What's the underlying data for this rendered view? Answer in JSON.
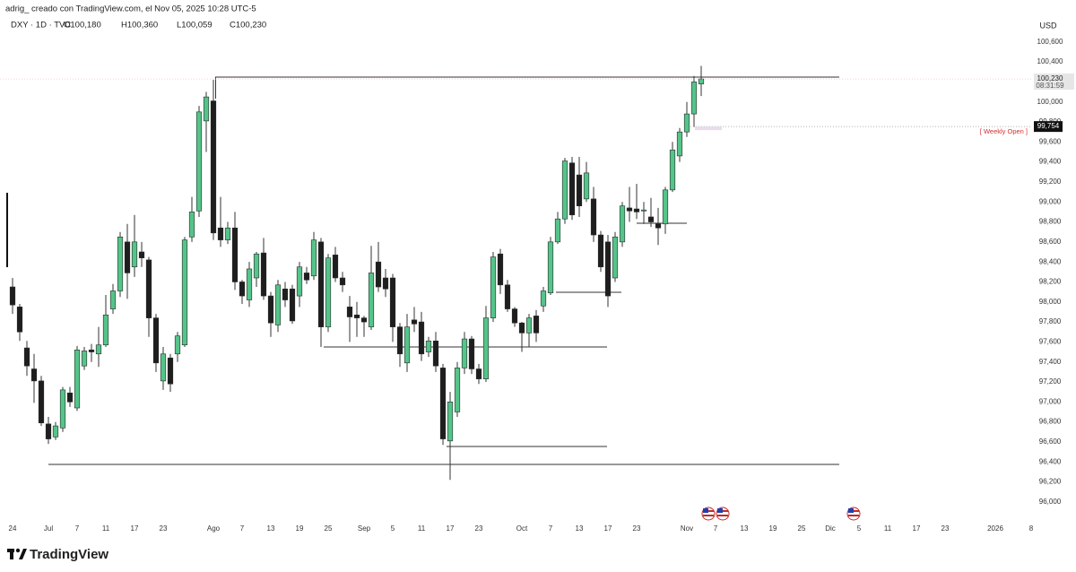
{
  "header": {
    "author_line": "adrig_ creado con TradingView.com, el Nov 05, 2025 10:28 UTC-5",
    "symbol": "DXY · 1D · TVC",
    "ohlc": [
      "O100,180",
      "H100,360",
      "L100,059",
      "C100,230"
    ]
  },
  "footer": {
    "brand": "TradingView"
  },
  "chart_data": {
    "type": "candlestick",
    "y_unit": "USD",
    "up_color": "#55c48a",
    "down_color": "#1e1e1e",
    "grid": false,
    "categories": [
      "24",
      null,
      null,
      null,
      null,
      "Jul",
      null,
      null,
      null,
      "7",
      null,
      null,
      null,
      "11",
      null,
      null,
      null,
      "17",
      null,
      null,
      null,
      "23",
      null,
      null,
      null,
      null,
      null,
      null,
      "Ago",
      null,
      null,
      null,
      "7",
      null,
      null,
      null,
      "13",
      null,
      null,
      null,
      "19",
      null,
      null,
      null,
      "25",
      null,
      null,
      null,
      null,
      "Sep",
      null,
      null,
      null,
      "5",
      null,
      null,
      null,
      "11",
      null,
      null,
      null,
      "17",
      null,
      null,
      null,
      "23",
      null,
      null,
      null,
      null,
      null,
      "Oct",
      null,
      null,
      null,
      "7",
      null,
      null,
      null,
      "13",
      null,
      null,
      null,
      "17",
      null,
      null,
      null,
      "23",
      null,
      null,
      null,
      null,
      null,
      null,
      "Nov",
      null,
      null,
      null,
      "7",
      null,
      null,
      null,
      "13",
      null,
      null,
      null,
      "19",
      null,
      null,
      null,
      "25",
      null,
      null,
      null,
      "Dic",
      null,
      null,
      null,
      "5",
      null,
      null,
      null,
      "11",
      null,
      null,
      null,
      "17",
      null,
      null,
      null,
      "23",
      null,
      null,
      null,
      null,
      null,
      null,
      "2026",
      null,
      null,
      null,
      null,
      "8"
    ],
    "open": [
      98.15,
      97.95,
      97.54,
      97.33,
      97.21,
      96.78,
      96.65,
      96.74,
      97.09,
      96.94,
      97.36,
      97.52,
      97.48,
      97.57,
      97.93,
      98.11,
      98.6,
      98.35,
      98.5,
      98.42,
      97.84,
      97.21,
      97.44,
      97.48,
      97.57,
      98.65,
      98.91,
      99.81,
      100.01,
      98.74,
      98.62,
      98.74,
      98.2,
      98.02,
      98.24,
      98.49,
      98.06,
      97.77,
      98.13,
      98.13,
      98.06,
      98.29,
      98.26,
      98.6,
      97.75,
      98.47,
      98.24,
      97.95,
      97.87,
      97.84,
      97.75,
      98.4,
      98.24,
      98.24,
      97.75,
      97.39,
      97.82,
      97.8,
      97.5,
      97.61,
      97.34,
      96.61,
      96.9,
      97.34,
      97.63,
      97.33,
      97.23,
      97.84,
      98.48,
      98.17,
      97.93,
      97.79,
      97.69,
      97.86,
      97.96,
      98.09,
      98.6,
      98.83,
      99.39,
      99.27,
      99.03,
      99.03,
      98.67,
      98.6,
      98.24,
      98.6,
      98.94,
      98.93,
      98.91,
      98.85,
      98.78,
      98.78,
      99.12,
      99.46,
      99.7,
      99.88,
      100.18,
      null,
      null,
      null,
      null,
      null,
      null,
      null,
      null,
      null,
      null,
      null,
      null,
      null,
      null,
      null,
      null,
      null,
      null,
      null,
      null,
      null,
      null,
      null,
      null,
      null,
      null,
      null,
      null,
      null,
      null,
      null,
      null,
      null,
      null,
      null,
      null,
      null,
      null,
      null,
      null,
      null,
      null,
      null,
      null,
      null,
      null
    ],
    "high": [
      98.24,
      97.98,
      97.61,
      97.48,
      97.26,
      96.85,
      96.8,
      97.15,
      97.15,
      97.56,
      97.55,
      97.58,
      97.75,
      98.07,
      98.18,
      98.7,
      98.78,
      98.87,
      98.6,
      98.45,
      97.88,
      97.55,
      97.48,
      97.7,
      98.65,
      99.05,
      99.96,
      100.1,
      100.22,
      99.05,
      98.8,
      98.9,
      98.22,
      98.4,
      98.5,
      98.64,
      98.1,
      98.22,
      98.2,
      98.17,
      98.4,
      98.35,
      98.7,
      98.64,
      98.48,
      98.55,
      98.3,
      98.06,
      98.0,
      97.86,
      98.56,
      98.6,
      98.33,
      98.28,
      97.79,
      97.88,
      97.95,
      97.9,
      97.65,
      97.7,
      97.38,
      97.1,
      97.4,
      97.7,
      97.66,
      97.38,
      97.96,
      98.5,
      98.53,
      98.22,
      97.95,
      97.8,
      97.88,
      97.92,
      98.15,
      98.65,
      98.9,
      99.44,
      99.45,
      99.45,
      99.4,
      99.15,
      98.71,
      98.67,
      98.7,
      99.0,
      99.15,
      99.18,
      99.0,
      99.04,
      98.94,
      99.15,
      99.6,
      99.74,
      100.0,
      100.26,
      100.36,
      null,
      null,
      null,
      null,
      null,
      null,
      null,
      null,
      null,
      null,
      null,
      null,
      null,
      null,
      null,
      null,
      null,
      null,
      null,
      null,
      null,
      null,
      null,
      null,
      null,
      null,
      null,
      null,
      null,
      null,
      null,
      null,
      null,
      null,
      null,
      null,
      null,
      null,
      null,
      null,
      null,
      null,
      null,
      null,
      null,
      null
    ],
    "low": [
      97.88,
      97.61,
      97.26,
      96.99,
      96.76,
      96.58,
      96.62,
      96.7,
      96.95,
      96.91,
      97.32,
      97.4,
      97.35,
      97.55,
      97.88,
      98.05,
      98.03,
      98.25,
      98.35,
      97.65,
      97.3,
      97.12,
      97.1,
      97.4,
      97.55,
      98.6,
      98.85,
      99.5,
      98.62,
      98.55,
      98.58,
      98.12,
      97.98,
      97.95,
      98.15,
      98.02,
      97.65,
      97.7,
      97.95,
      97.78,
      97.95,
      98.18,
      98.22,
      97.55,
      97.7,
      98.2,
      98.1,
      97.6,
      97.65,
      97.65,
      97.72,
      98.1,
      98.05,
      97.6,
      97.35,
      97.3,
      97.7,
      97.41,
      97.45,
      97.3,
      96.57,
      96.22,
      96.85,
      97.28,
      97.28,
      97.18,
      97.2,
      97.8,
      98.08,
      97.9,
      97.75,
      97.5,
      97.55,
      97.6,
      97.9,
      98.07,
      98.58,
      98.78,
      98.82,
      98.85,
      99.0,
      98.6,
      98.3,
      97.95,
      98.2,
      98.55,
      98.8,
      98.83,
      98.78,
      98.75,
      98.57,
      98.68,
      99.1,
      99.4,
      99.65,
      99.75,
      100.059,
      null,
      null,
      null,
      null,
      null,
      null,
      null,
      null,
      null,
      null,
      null,
      null,
      null,
      null,
      null,
      null,
      null,
      null,
      null,
      null,
      null,
      null,
      null,
      null,
      null,
      null,
      null,
      null,
      null,
      null,
      null,
      null,
      null,
      null,
      null,
      null,
      null,
      null,
      null,
      null,
      null,
      null,
      null,
      null,
      null,
      null
    ],
    "close": [
      97.97,
      97.7,
      97.36,
      97.21,
      96.79,
      96.63,
      96.76,
      97.12,
      97.0,
      97.52,
      97.51,
      97.5,
      97.57,
      97.87,
      98.11,
      98.65,
      98.29,
      98.6,
      98.44,
      97.84,
      97.39,
      97.48,
      97.18,
      97.66,
      98.62,
      98.9,
      99.9,
      100.05,
      98.69,
      98.62,
      98.74,
      98.2,
      98.06,
      98.33,
      98.48,
      98.06,
      97.79,
      98.17,
      98.02,
      97.81,
      98.35,
      98.22,
      98.62,
      97.75,
      98.44,
      98.24,
      98.17,
      97.85,
      97.84,
      97.8,
      98.29,
      98.15,
      98.13,
      97.75,
      97.48,
      97.75,
      97.78,
      97.48,
      97.61,
      97.36,
      96.63,
      97.0,
      97.34,
      97.63,
      97.33,
      97.23,
      97.84,
      98.45,
      98.17,
      97.93,
      97.79,
      97.69,
      97.84,
      97.69,
      98.11,
      98.6,
      98.83,
      99.41,
      98.87,
      98.96,
      99.29,
      98.67,
      98.35,
      98.06,
      98.65,
      98.96,
      98.91,
      98.9,
      98.92,
      98.8,
      98.74,
      99.12,
      99.52,
      99.7,
      99.88,
      100.2,
      100.23,
      null,
      null,
      null,
      null,
      null,
      null,
      null,
      null,
      null,
      null,
      null,
      null,
      null,
      null,
      null,
      null,
      null,
      null,
      null,
      null,
      null,
      null,
      null,
      null,
      null,
      null,
      null,
      null,
      null,
      null,
      null,
      null,
      null,
      null,
      null,
      null,
      null,
      null,
      null,
      null,
      null,
      null,
      null,
      null,
      null,
      null
    ],
    "ylim": [
      95.64,
      100.84
    ],
    "yticks": [
      {
        "value": 96.0,
        "label": "96,000"
      },
      {
        "value": 96.2,
        "label": "96,200"
      },
      {
        "value": 96.4,
        "label": "96,400"
      },
      {
        "value": 96.6,
        "label": "96,600"
      },
      {
        "value": 96.8,
        "label": "96,800"
      },
      {
        "value": 97.0,
        "label": "97,000"
      },
      {
        "value": 97.2,
        "label": "97,200"
      },
      {
        "value": 97.4,
        "label": "97,400"
      },
      {
        "value": 97.6,
        "label": "97,600"
      },
      {
        "value": 97.8,
        "label": "97,800"
      },
      {
        "value": 98.0,
        "label": "98,000"
      },
      {
        "value": 98.2,
        "label": "98,200"
      },
      {
        "value": 98.4,
        "label": "98,400"
      },
      {
        "value": 98.6,
        "label": "98,600"
      },
      {
        "value": 98.8,
        "label": "98,800"
      },
      {
        "value": 99.0,
        "label": "99,000"
      },
      {
        "value": 99.2,
        "label": "99,200"
      },
      {
        "value": 99.4,
        "label": "99,400"
      },
      {
        "value": 99.6,
        "label": "99,600"
      },
      {
        "value": 99.8,
        "label": "99,800"
      },
      {
        "value": 100.0,
        "label": "100,000"
      },
      {
        "value": 100.2,
        "label": "100,200"
      },
      {
        "value": 100.4,
        "label": "100,400"
      },
      {
        "value": 100.6,
        "label": "100,600"
      }
    ],
    "price_labels": [
      {
        "value": 100.23,
        "label": "100,230",
        "sublabel": "08:31:59"
      },
      {
        "value": 99.754,
        "label": "99,754",
        "note": "[ Weekly Open ]"
      }
    ]
  }
}
